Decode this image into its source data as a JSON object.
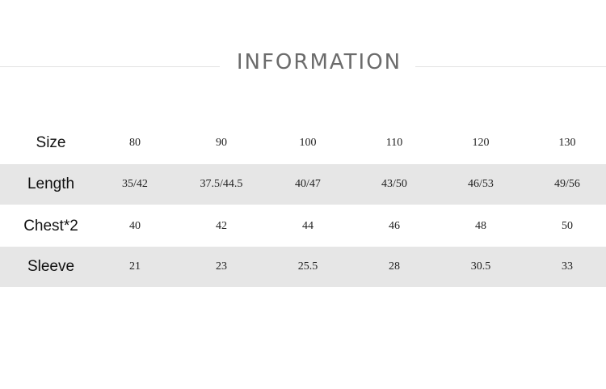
{
  "header": {
    "title": "INFORMATION"
  },
  "table": {
    "rows": [
      {
        "label": "Size",
        "cells": [
          "80",
          "90",
          "100",
          "110",
          "120",
          "130"
        ]
      },
      {
        "label": "Length",
        "cells": [
          "35/42",
          "37.5/44.5",
          "40/47",
          "43/50",
          "46/53",
          "49/56"
        ]
      },
      {
        "label": "Chest*2",
        "cells": [
          "40",
          "42",
          "44",
          "46",
          "48",
          "50"
        ]
      },
      {
        "label": "Sleeve",
        "cells": [
          "21",
          "23",
          "25.5",
          "28",
          "30.5",
          "33"
        ]
      }
    ]
  }
}
